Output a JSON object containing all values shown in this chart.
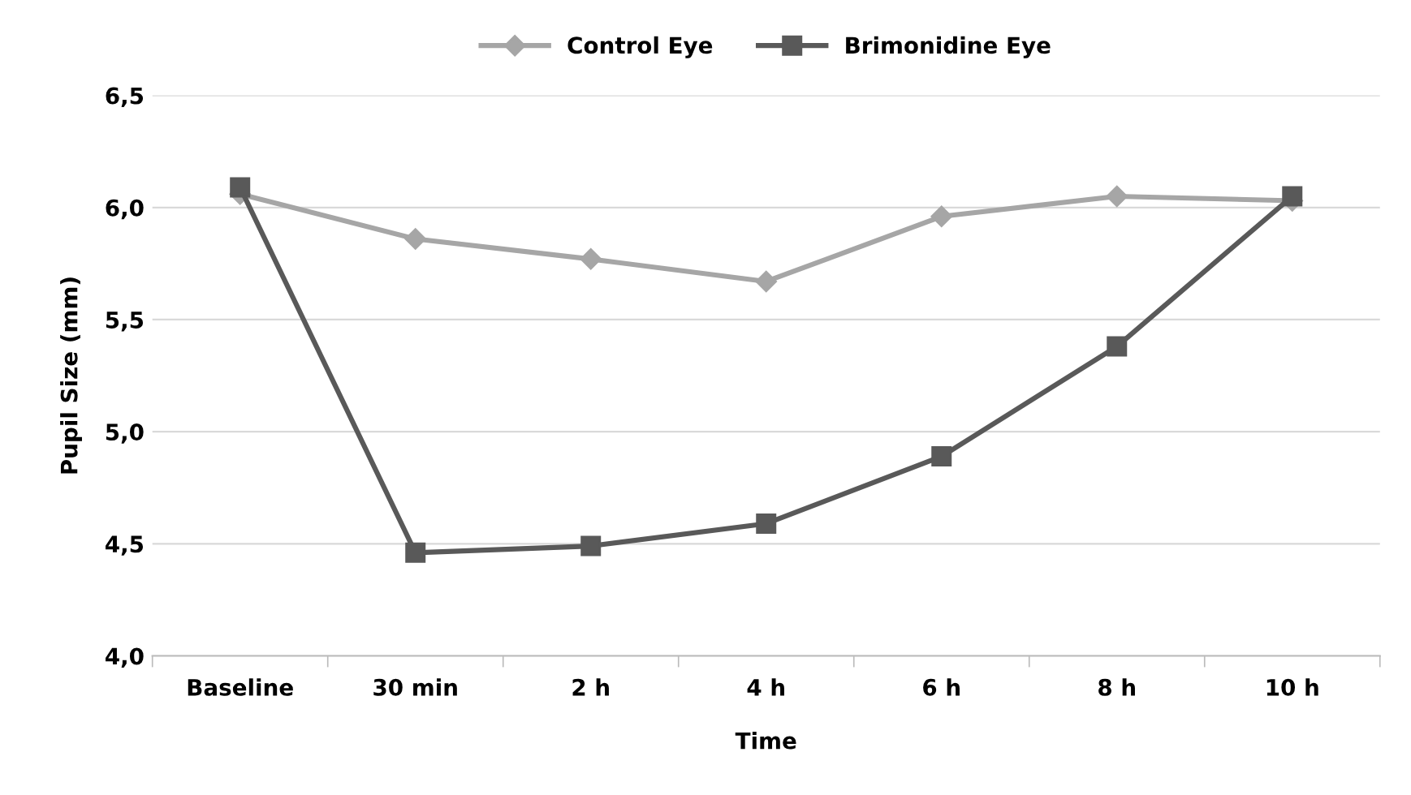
{
  "chart_data": {
    "type": "line",
    "xlabel": "Time",
    "ylabel": "Pupil Size (mm)",
    "categories": [
      "Baseline",
      "30 min",
      "2 h",
      "4 h",
      "6 h",
      "8 h",
      "10 h"
    ],
    "series": [
      {
        "name": "Control Eye",
        "color": "#a6a6a6",
        "marker": "diamond",
        "values": [
          6.06,
          5.86,
          5.77,
          5.67,
          5.96,
          6.05,
          6.03
        ]
      },
      {
        "name": "Brimonidine Eye",
        "color": "#595959",
        "marker": "square",
        "values": [
          6.09,
          4.46,
          4.49,
          4.59,
          4.89,
          5.38,
          6.05
        ]
      }
    ],
    "ylim": [
      4.0,
      6.5
    ],
    "yticks": [
      {
        "value": 4.0,
        "label": "4,0"
      },
      {
        "value": 4.5,
        "label": "4,5"
      },
      {
        "value": 5.0,
        "label": "5,0"
      },
      {
        "value": 5.5,
        "label": "5,5"
      },
      {
        "value": 6.0,
        "label": "6,0"
      },
      {
        "value": 6.5,
        "label": "6,5"
      }
    ],
    "grid": "y",
    "legend": "top",
    "line_style": "solid"
  }
}
